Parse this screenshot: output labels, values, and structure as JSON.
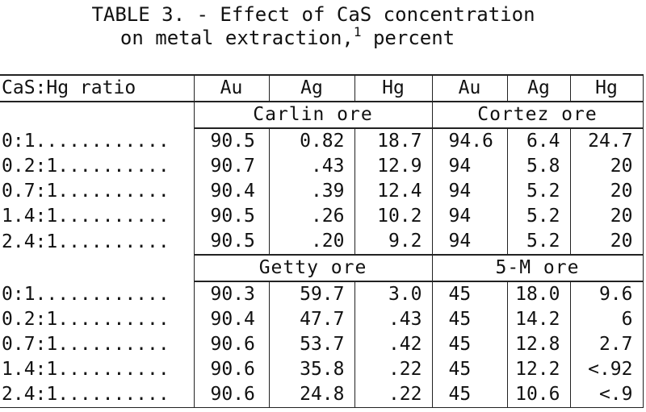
{
  "title": {
    "line1": "TABLE 3. - Effect of CaS concentration",
    "line2": "on metal extraction,",
    "footnote_mark": "1",
    "line2_end": " percent"
  },
  "columns": [
    "CaS:Hg ratio",
    "Au",
    "Ag",
    "Hg",
    "Au",
    "Ag",
    "Hg"
  ],
  "sections": [
    {
      "left_group": "Carlin ore",
      "right_group": "Cortez ore",
      "rows": [
        {
          "ratio": "0:1............",
          "cells": [
            "90.5",
            "0.82",
            "18.7",
            "94.6",
            "6.4",
            "24.7"
          ]
        },
        {
          "ratio": "0.2:1..........",
          "cells": [
            "90.7",
            ".43",
            "12.9",
            "94",
            "5.8",
            "20"
          ]
        },
        {
          "ratio": "0.7:1..........",
          "cells": [
            "90.4",
            ".39",
            "12.4",
            "94",
            "5.2",
            "20"
          ]
        },
        {
          "ratio": "1.4:1..........",
          "cells": [
            "90.5",
            ".26",
            "10.2",
            "94",
            "5.2",
            "20"
          ]
        },
        {
          "ratio": "2.4:1..........",
          "cells": [
            "90.5",
            ".20",
            "9.2",
            "94",
            "5.2",
            "20"
          ]
        }
      ]
    },
    {
      "left_group": "Getty ore",
      "right_group": "5-M ore",
      "rows": [
        {
          "ratio": "0:1............",
          "cells": [
            "90.3",
            "59.7",
            "3.0",
            "45",
            "18.0",
            "9.6"
          ]
        },
        {
          "ratio": "0.2:1..........",
          "cells": [
            "90.4",
            "47.7",
            ".43",
            "45",
            "14.2",
            "6"
          ]
        },
        {
          "ratio": "0.7:1..........",
          "cells": [
            "90.6",
            "53.7",
            ".42",
            "45",
            "12.8",
            "2.7"
          ]
        },
        {
          "ratio": "1.4:1..........",
          "cells": [
            "90.6",
            "35.8",
            ".22",
            "45",
            "12.2",
            "<.92"
          ]
        },
        {
          "ratio": "2.4:1..........",
          "cells": [
            "90.6",
            "24.8",
            ".22",
            "45",
            "10.6",
            "<.9"
          ]
        }
      ]
    }
  ]
}
